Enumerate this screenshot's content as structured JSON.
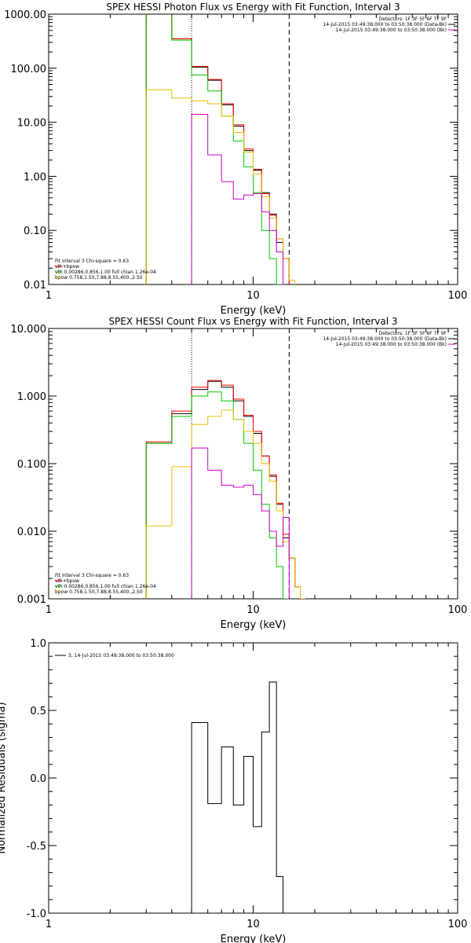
{
  "colors": {
    "total": "#000000",
    "fit": "#ff0000",
    "vth": "#00cc00",
    "bpow": "#e8c000",
    "bk": "#cc00cc"
  },
  "chart_data": [
    {
      "type": "line",
      "title": "SPEX HESSI Photon Flux vs Energy with Fit Function, Interval 3",
      "xlabel": "Energy (keV)",
      "ylabel": "",
      "xscale": "log",
      "yscale": "log",
      "xlim": [
        1,
        100
      ],
      "ylim": [
        0.01,
        1000
      ],
      "xticks": [
        1,
        10,
        100
      ],
      "xtick_labels": [
        "1",
        "10",
        "100"
      ],
      "yticks": [
        0.01,
        0.1,
        1,
        10,
        100,
        1000
      ],
      "ytick_labels": [
        "0.01",
        "0.10",
        "1.00",
        "10.00",
        "100.00",
        "1000.00"
      ],
      "vlines": [
        {
          "x": 5.0,
          "style": "dotted"
        },
        {
          "x": 15.0,
          "style": "dashed"
        }
      ],
      "info_text": [
        "Detectors: 1F 3F 5F 6F 7F 9F",
        "14-Jul-2015 03:49:38.000 to 03:50:38.000 (Data-Bk)",
        "14-Jul-2015 03:49:38.000 to 03:50:38.000 (Bk)"
      ],
      "legend_text": [
        "Fit Interval 3   Chi-square = 0.63",
        "vth+bpow",
        "vth 0.00286,0.856,1.00  full chian 1.26e-04",
        "bpow 0.758,1.50,7.88,8.55,400.,2.50"
      ],
      "edges": [
        3.0,
        4.0,
        5.0,
        6.0,
        7.0,
        8.0,
        9.0,
        10.0,
        11.0,
        12.0,
        13.0,
        14.0,
        15.0,
        16.0,
        17.0,
        18.0
      ],
      "series": [
        {
          "key": "total",
          "values": [
            1400,
            350,
            105,
            60,
            21,
            8.5,
            3.0,
            1.3,
            0.5,
            0.2,
            0.06,
            0.03,
            null,
            null,
            null
          ]
        },
        {
          "key": "fit",
          "values": [
            1400,
            350,
            108,
            62,
            22,
            9.0,
            3.2,
            1.35,
            0.48,
            0.19,
            0.07,
            0.03,
            null,
            null,
            null
          ]
        },
        {
          "key": "vth",
          "values": [
            1400,
            330,
            75,
            38,
            13,
            4.5,
            1.5,
            0.5,
            0.1,
            0.03,
            0.01,
            0.004,
            null,
            null,
            null
          ]
        },
        {
          "key": "bpow",
          "values": [
            40,
            28,
            25,
            22,
            13,
            6.5,
            2.8,
            1.1,
            0.42,
            0.17,
            0.07,
            0.03,
            0.012,
            null,
            null
          ]
        },
        {
          "key": "bk",
          "values": [
            null,
            null,
            14,
            2.5,
            0.8,
            0.38,
            0.45,
            0.48,
            0.22,
            0.1,
            0.04,
            0.003,
            null,
            null,
            null
          ]
        }
      ]
    },
    {
      "type": "line",
      "title": "SPEX HESSI Count Flux vs Energy with Fit Function, Interval 3",
      "xlabel": "Energy (keV)",
      "ylabel": "",
      "xscale": "log",
      "yscale": "log",
      "xlim": [
        1,
        100
      ],
      "ylim": [
        0.001,
        10
      ],
      "xticks": [
        1,
        10,
        100
      ],
      "xtick_labels": [
        "1",
        "10",
        "100"
      ],
      "yticks": [
        0.001,
        0.01,
        0.1,
        1,
        10
      ],
      "ytick_labels": [
        "0.001",
        "0.010",
        "0.100",
        "1.000",
        "10.000"
      ],
      "vlines": [
        {
          "x": 5.0,
          "style": "dotted"
        },
        {
          "x": 15.0,
          "style": "dashed"
        }
      ],
      "info_text": [
        "Detectors: 1F 3F 5F 6F 7F 9F",
        "14-Jul-2015 03:49:38.000 to 03:50:38.000 (Data-Bk)",
        "14-Jul-2015 03:49:38.000 to 03:50:38.000 (Bk)"
      ],
      "legend_text": [
        "Fit Interval 3   Chi-square = 0.63",
        "vth+bpow",
        "vth 0.00286,0.856,1.00  full chian 1.26e-04",
        "bpow 0.758,1.50,7.88,8.55,400.,2.50"
      ],
      "edges": [
        3.0,
        4.0,
        5.0,
        6.0,
        7.0,
        8.0,
        9.0,
        10.0,
        11.0,
        12.0,
        13.0,
        14.0,
        15.0,
        16.0,
        17.0,
        18.0
      ],
      "series": [
        {
          "key": "total",
          "values": [
            0.2,
            0.55,
            1.25,
            1.65,
            1.35,
            0.85,
            0.5,
            0.28,
            0.13,
            0.065,
            0.025,
            0.008,
            0.004,
            0.0015,
            0.001
          ]
        },
        {
          "key": "fit",
          "values": [
            0.21,
            0.6,
            1.35,
            1.7,
            1.45,
            0.9,
            0.52,
            0.3,
            0.13,
            0.068,
            0.026,
            0.009,
            0.004,
            0.0015,
            0.001
          ]
        },
        {
          "key": "vth",
          "values": [
            0.2,
            0.5,
            1.0,
            1.15,
            0.85,
            0.45,
            0.2,
            0.08,
            0.025,
            0.008,
            0.003,
            0.001,
            null,
            null,
            null
          ]
        },
        {
          "key": "bpow",
          "values": [
            0.012,
            0.09,
            0.38,
            0.5,
            0.62,
            0.45,
            0.3,
            0.2,
            0.1,
            0.055,
            0.02,
            0.007,
            0.004,
            0.0015,
            0.001
          ]
        },
        {
          "key": "bk",
          "values": [
            null,
            null,
            0.17,
            0.08,
            0.048,
            0.045,
            0.048,
            0.035,
            0.02,
            0.01,
            0.006,
            0.016,
            null,
            null,
            null
          ]
        }
      ]
    },
    {
      "type": "line",
      "title": "",
      "xlabel": "Energy (keV)",
      "ylabel": "Normalized Residuals (sigma)",
      "xscale": "log",
      "yscale": "linear",
      "xlim": [
        1,
        100
      ],
      "ylim": [
        -1.0,
        1.0
      ],
      "xticks": [
        1,
        10,
        100
      ],
      "xtick_labels": [
        "1",
        "10",
        "100"
      ],
      "yticks": [
        -1.0,
        -0.5,
        0.0,
        0.5,
        1.0
      ],
      "ytick_labels": [
        "-1.0",
        "-0.5",
        "0.0",
        "0.5",
        "1.0"
      ],
      "legend_text": [
        "3, 14-Jul-2015 03:49:38.000 to 03:50:38.000"
      ],
      "edges": [
        5.0,
        6.0,
        7.0,
        8.0,
        9.0,
        10.0,
        11.0,
        12.0,
        13.0,
        14.0,
        15.0
      ],
      "series": [
        {
          "key": "total",
          "values": [
            0.41,
            -0.19,
            0.23,
            -0.2,
            0.16,
            -0.36,
            0.34,
            0.71,
            -0.73,
            -1.0
          ]
        }
      ]
    }
  ]
}
